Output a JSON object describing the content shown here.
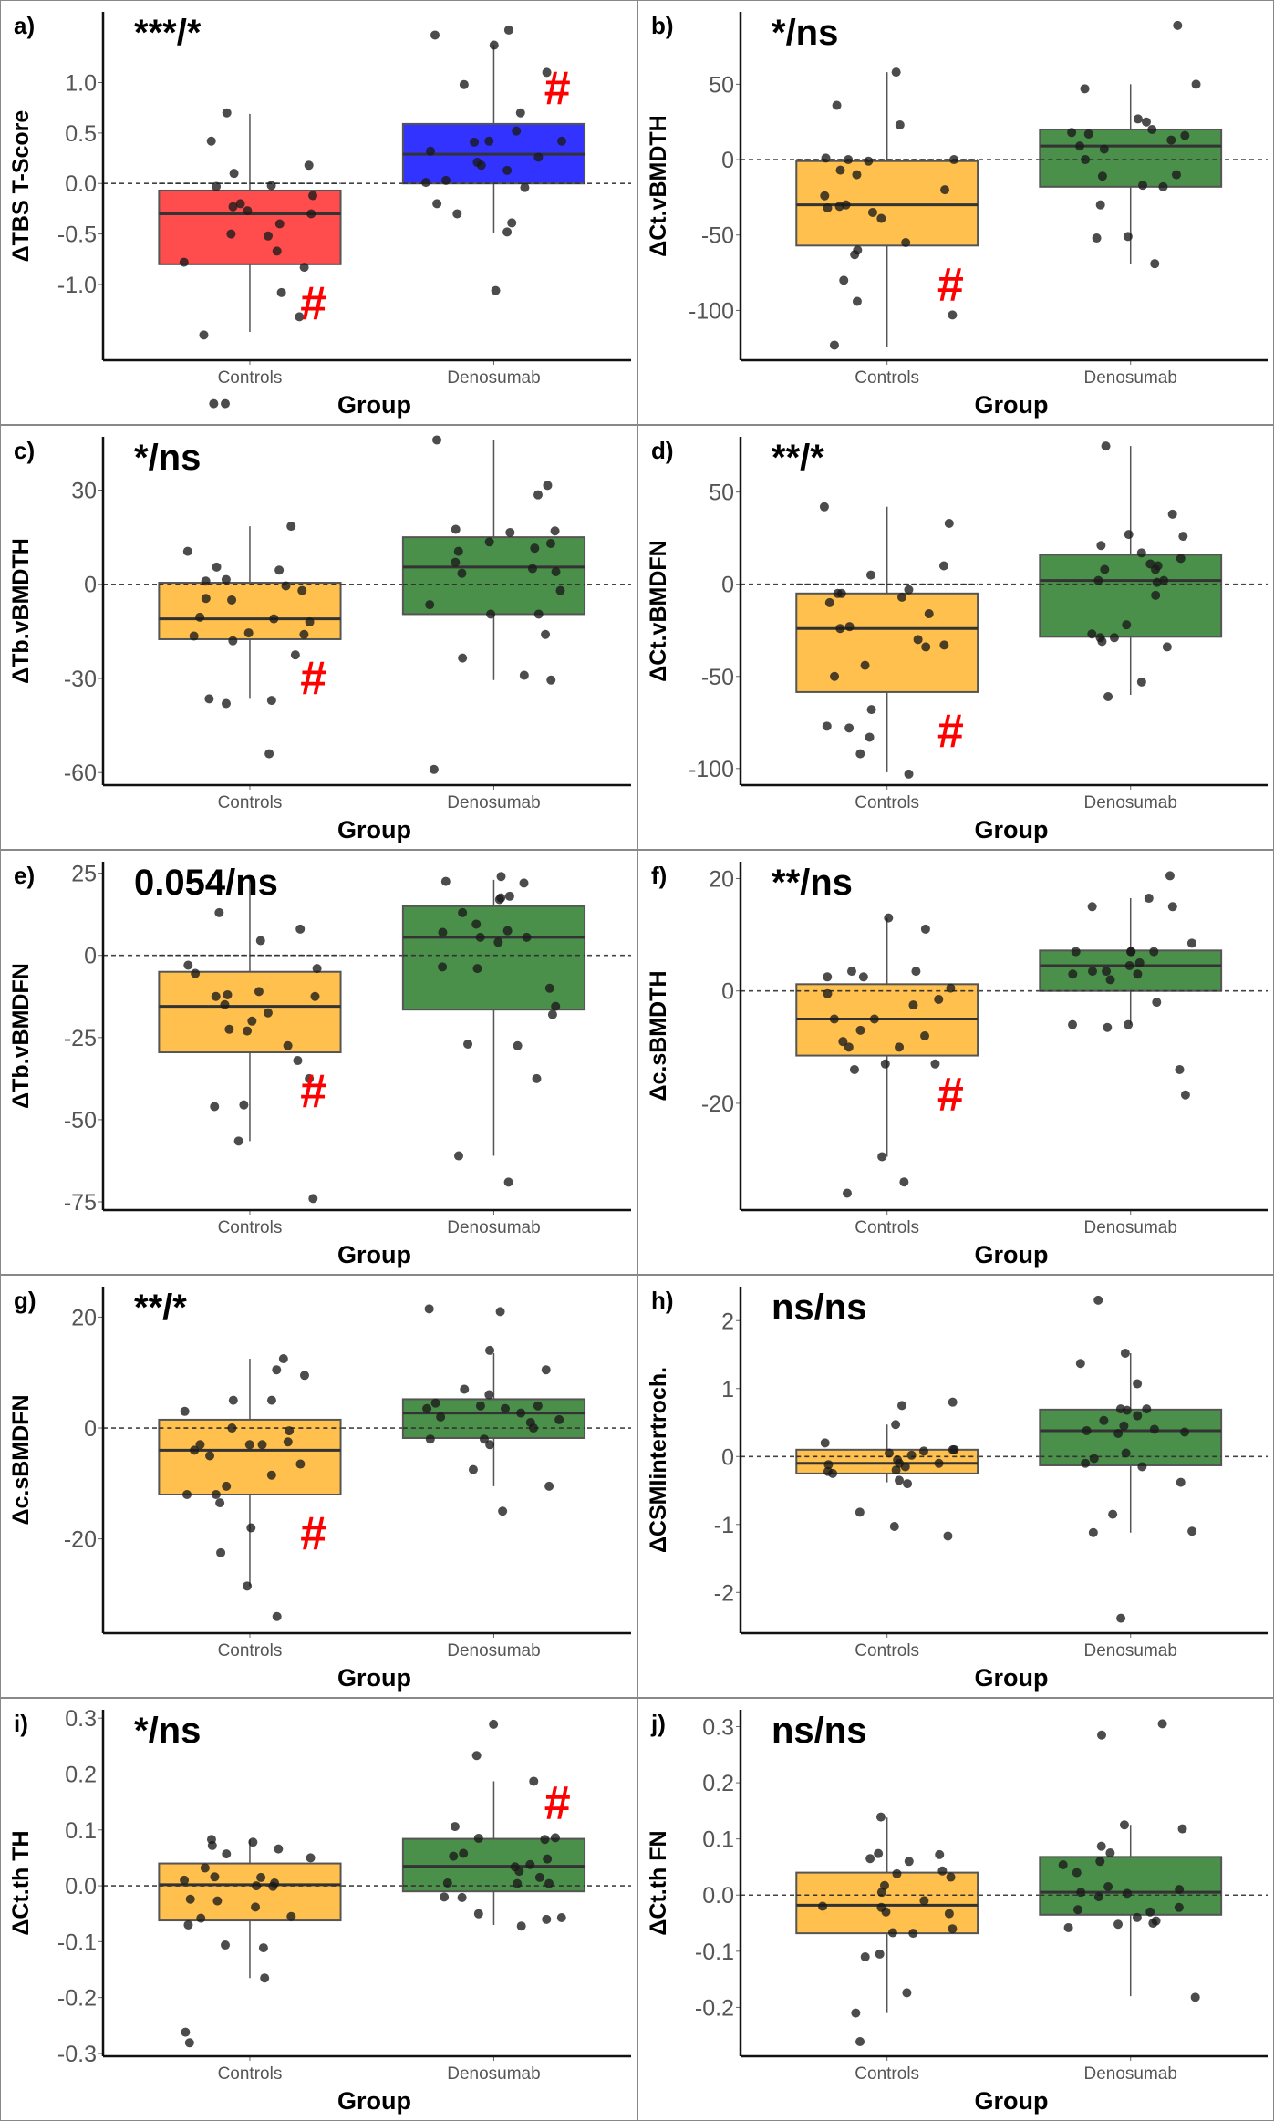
{
  "figure": {
    "x_axis_label": "Group",
    "categories": [
      "Controls",
      "Denosumab"
    ],
    "colors": {
      "controls_red": "#ff4d4d",
      "denosumab_blue": "#3333ff",
      "controls_orange": "#ffc04d",
      "denosumab_green": "#4a8f4a",
      "hash_red": "#ff0000",
      "point": "#1a1a1a"
    }
  },
  "chart_data": [
    {
      "type": "box",
      "panel": "a)",
      "annotation": "***/*",
      "ylabel": "ΔTBS T-Score",
      "yticks": [
        1.0,
        0.5,
        0.0,
        -0.5,
        -1.0
      ],
      "ytick_labels": [
        "1.0",
        "0.5",
        "0.0",
        "-0.5",
        "-1.0"
      ],
      "ylim": [
        -1.75,
        1.7
      ],
      "reference_line": 0,
      "box_colors": [
        "#ff4d4d",
        "#3333ff"
      ],
      "hash_marks": [
        "Controls",
        "Denosumab"
      ],
      "groups": [
        {
          "name": "Controls",
          "q1": -0.8,
          "median": -0.3,
          "q3": -0.07,
          "whisker_low": -1.47,
          "whisker_high": 0.69,
          "points": [
            0.7,
            0.42,
            0.18,
            0.1,
            -0.02,
            -0.03,
            -0.12,
            -0.2,
            -0.23,
            -0.27,
            -0.3,
            -0.4,
            -0.5,
            -0.52,
            -0.67,
            -0.78,
            -0.83,
            -1.08,
            -1.32,
            -1.5,
            -2.18,
            -2.18
          ]
        },
        {
          "name": "Denosumab",
          "q1": 0.0,
          "median": 0.29,
          "q3": 0.59,
          "whisker_low": -0.49,
          "whisker_high": 1.37,
          "points": [
            1.52,
            1.47,
            1.37,
            1.1,
            0.98,
            0.7,
            0.52,
            0.42,
            0.42,
            0.41,
            0.32,
            0.26,
            0.21,
            0.18,
            0.13,
            0.03,
            0.01,
            -0.04,
            -0.2,
            -0.3,
            -0.39,
            -0.48,
            -1.06
          ]
        }
      ]
    },
    {
      "type": "box",
      "panel": "b)",
      "annotation": "*/ns",
      "ylabel": "ΔCt.vBMDTH",
      "yticks": [
        50,
        0,
        -50,
        -100
      ],
      "ytick_labels": [
        "50",
        "0",
        "-50",
        "-100"
      ],
      "ylim": [
        -133,
        98
      ],
      "reference_line": 0,
      "box_colors": [
        "#ffc04d",
        "#4a8f4a"
      ],
      "hash_marks": [
        "Controls"
      ],
      "groups": [
        {
          "name": "Controls",
          "q1": -57,
          "median": -30,
          "q3": -1,
          "whisker_low": -124,
          "whisker_high": 58,
          "points": [
            58,
            36,
            23,
            1,
            0,
            0,
            -1,
            -7,
            -10,
            -20,
            -24,
            -30,
            -31,
            -32,
            -35,
            -39,
            -55,
            -60,
            -63,
            -80,
            -94,
            -103,
            -123
          ]
        },
        {
          "name": "Denosumab",
          "q1": -18,
          "median": 9,
          "q3": 20,
          "whisker_low": -69,
          "whisker_high": 50,
          "points": [
            89,
            50,
            47,
            27,
            25,
            20,
            18,
            17,
            16,
            13,
            9,
            7,
            0,
            -10,
            -11,
            -17,
            -18,
            -30,
            -51,
            -52,
            -69
          ]
        }
      ]
    },
    {
      "type": "box",
      "panel": "c)",
      "annotation": "*/ns",
      "ylabel": "ΔTb.vBMDTH",
      "yticks": [
        30,
        0,
        -30,
        -60
      ],
      "ytick_labels": [
        "30",
        "0",
        "-30",
        "-60"
      ],
      "ylim": [
        -64,
        47
      ],
      "reference_line": 0,
      "box_colors": [
        "#ffc04d",
        "#4a8f4a"
      ],
      "hash_marks": [
        "Controls"
      ],
      "groups": [
        {
          "name": "Controls",
          "q1": -17.5,
          "median": -11,
          "q3": 0.5,
          "whisker_low": -36.5,
          "whisker_high": 18.5,
          "points": [
            18.5,
            10.5,
            5.5,
            4.5,
            1.5,
            1.0,
            -0.5,
            -2,
            -4.5,
            -5,
            -10.5,
            -11,
            -12,
            -15.5,
            -16.5,
            -16,
            -18,
            -22.5,
            -37,
            -36.5,
            -38,
            -54
          ]
        },
        {
          "name": "Denosumab",
          "q1": -9.5,
          "median": 5.5,
          "q3": 15,
          "whisker_low": -30.5,
          "whisker_high": 46,
          "points": [
            46,
            31.5,
            28.5,
            17.5,
            17,
            16.5,
            13.5,
            13,
            11.5,
            10.5,
            7,
            5,
            4,
            3.5,
            -2,
            -6.5,
            -9.5,
            -9.5,
            -16,
            -23.5,
            -29,
            -30.5,
            -59
          ]
        }
      ]
    },
    {
      "type": "box",
      "panel": "d)",
      "annotation": "**/*",
      "ylabel": "ΔCt.vBMDFN",
      "yticks": [
        50,
        0,
        -50,
        -100
      ],
      "ytick_labels": [
        "50",
        "0",
        "-50",
        "-100"
      ],
      "ylim": [
        -109,
        80
      ],
      "reference_line": 0,
      "box_colors": [
        "#ffc04d",
        "#4a8f4a"
      ],
      "hash_marks": [
        "Controls"
      ],
      "groups": [
        {
          "name": "Controls",
          "q1": -58.5,
          "median": -24,
          "q3": -5,
          "whisker_low": -102,
          "whisker_high": 42,
          "points": [
            42,
            33,
            10,
            5,
            -3,
            -5,
            -5,
            -7,
            -10,
            -16,
            -23,
            -24,
            -30,
            -33,
            -34,
            -44,
            -50,
            -68,
            -77,
            -78,
            -83,
            -92,
            -103
          ]
        },
        {
          "name": "Denosumab",
          "q1": -28.5,
          "median": 2,
          "q3": 16,
          "whisker_low": -60,
          "whisker_high": 75,
          "points": [
            75,
            38,
            27,
            26,
            21,
            17,
            14,
            11,
            10,
            8,
            8,
            2,
            2,
            1,
            -6,
            -22,
            -27,
            -29,
            -29,
            -31,
            -34,
            -53,
            -61
          ]
        }
      ]
    },
    {
      "type": "box",
      "panel": "e)",
      "annotation": "0.054/ns",
      "ylabel": "ΔTb.vBMDFN",
      "yticks": [
        25,
        0,
        -25,
        -50,
        -75
      ],
      "ytick_labels": [
        "25",
        "0",
        "-25",
        "-50",
        "-75"
      ],
      "ylim": [
        -77.5,
        28.5
      ],
      "reference_line": 0,
      "box_colors": [
        "#ffc04d",
        "#4a8f4a"
      ],
      "hash_marks": [
        "Controls"
      ],
      "groups": [
        {
          "name": "Controls",
          "q1": -29.5,
          "median": -15.5,
          "q3": -5,
          "whisker_low": -56.5,
          "whisker_high": 23,
          "points": [
            13,
            8,
            4.5,
            -3,
            -4,
            -5.5,
            -11,
            -12,
            -12.5,
            -12.5,
            -15,
            -17.5,
            -20,
            -22.5,
            -23,
            -27.5,
            -32,
            -37.5,
            -45.5,
            -46,
            -56.5,
            -74
          ]
        },
        {
          "name": "Denosumab",
          "q1": -16.5,
          "median": 5.5,
          "q3": 15,
          "whisker_low": -61,
          "whisker_high": 23,
          "points": [
            24,
            22,
            22.5,
            17.5,
            18,
            17,
            13,
            9.5,
            7.5,
            7,
            5.5,
            5.5,
            4,
            -3.5,
            -4,
            -10,
            -15.5,
            -18,
            -27.5,
            -27,
            -37.5,
            -61,
            -69
          ]
        }
      ]
    },
    {
      "type": "box",
      "panel": "f)",
      "annotation": "**/ns",
      "ylabel": "Δc.sBMDTH",
      "yticks": [
        20,
        0,
        -20
      ],
      "ytick_labels": [
        "20",
        "0",
        "-20"
      ],
      "ylim": [
        -39,
        23
      ],
      "reference_line": 0,
      "box_colors": [
        "#ffc04d",
        "#4a8f4a"
      ],
      "hash_marks": [
        "Controls"
      ],
      "groups": [
        {
          "name": "Controls",
          "q1": -11.5,
          "median": -5,
          "q3": 1.2,
          "whisker_low": -29.5,
          "whisker_high": 13,
          "points": [
            13,
            11,
            3.5,
            3.5,
            2.5,
            2.5,
            0.5,
            -0.5,
            -1.5,
            -2.5,
            -5,
            -5,
            -7,
            -8,
            -9,
            -10,
            -10,
            -13,
            -13,
            -14,
            -29.5,
            -34,
            -36
          ]
        },
        {
          "name": "Denosumab",
          "q1": 0,
          "median": 4.5,
          "q3": 7.2,
          "whisker_low": -6,
          "whisker_high": 16.5,
          "points": [
            20.5,
            16.5,
            15,
            15,
            8.5,
            7,
            7,
            7,
            7,
            5,
            4.5,
            3.5,
            3.5,
            3,
            3,
            2,
            -2,
            -6,
            -6,
            -6.5,
            -14,
            -18.5
          ]
        }
      ]
    },
    {
      "type": "box",
      "panel": "g)",
      "annotation": "**/*",
      "ylabel": "Δc.sBMDFN",
      "yticks": [
        20,
        0,
        -20
      ],
      "ytick_labels": [
        "20",
        "0",
        "-20"
      ],
      "ylim": [
        -37,
        25.5
      ],
      "reference_line": 0,
      "box_colors": [
        "#ffc04d",
        "#4a8f4a"
      ],
      "hash_marks": [
        "Controls"
      ],
      "groups": [
        {
          "name": "Controls",
          "q1": -12,
          "median": -4,
          "q3": 1.5,
          "whisker_low": -28.5,
          "whisker_high": 12.5,
          "points": [
            12.5,
            10.5,
            9.5,
            5,
            5,
            3,
            0,
            -0.5,
            -2.5,
            -3,
            -3,
            -3,
            -4,
            -5,
            -6.5,
            -8.5,
            -10.5,
            -12,
            -12,
            -13.5,
            -18,
            -22.5,
            -28.5,
            -34
          ]
        },
        {
          "name": "Denosumab",
          "q1": -1.8,
          "median": 2.7,
          "q3": 5.2,
          "whisker_low": -10.5,
          "whisker_high": 13.5,
          "points": [
            21.5,
            21,
            14,
            10.5,
            7,
            6,
            4.5,
            4,
            4,
            3.5,
            3.5,
            2.7,
            2,
            1.5,
            1,
            0,
            -2,
            -2,
            -3,
            -7.5,
            -10.5,
            -15
          ]
        }
      ]
    },
    {
      "type": "box",
      "panel": "h)",
      "annotation": "ns/ns",
      "ylabel": "ΔCSMIintertroch.",
      "yticks": [
        2,
        1,
        0,
        -1,
        -2
      ],
      "ytick_labels": [
        "2",
        "1",
        "0",
        "-1",
        "-2"
      ],
      "ylim": [
        -2.6,
        2.5
      ],
      "reference_line": 0,
      "box_colors": [
        "#ffc04d",
        "#4a8f4a"
      ],
      "hash_marks": [],
      "groups": [
        {
          "name": "Controls",
          "q1": -0.25,
          "median": -0.1,
          "q3": 0.1,
          "whisker_low": -0.38,
          "whisker_high": 0.47,
          "points": [
            0.8,
            0.75,
            0.47,
            0.2,
            0.1,
            0.1,
            0.08,
            0.05,
            0.02,
            -0.05,
            -0.1,
            -0.12,
            -0.1,
            -0.15,
            -0.2,
            -0.25,
            -0.22,
            -0.35,
            -0.4,
            -0.82,
            -1.03,
            -1.17
          ]
        },
        {
          "name": "Denosumab",
          "q1": -0.13,
          "median": 0.38,
          "q3": 0.69,
          "whisker_low": -1.12,
          "whisker_high": 1.52,
          "points": [
            2.3,
            1.52,
            1.37,
            1.07,
            0.7,
            0.7,
            0.68,
            0.6,
            0.53,
            0.45,
            0.4,
            0.38,
            0.36,
            0.34,
            0.05,
            -0.03,
            -0.1,
            -0.15,
            -0.38,
            -0.85,
            -1.1,
            -1.12,
            -2.38
          ]
        }
      ]
    },
    {
      "type": "box",
      "panel": "i)",
      "annotation": "*/ns",
      "ylabel": "ΔCt.th TH",
      "yticks": [
        0.3,
        0.2,
        0.1,
        0.0,
        -0.1,
        -0.2,
        -0.3
      ],
      "ytick_labels": [
        "0.3",
        "0.2",
        "0.1",
        "0.0",
        "-0.1",
        "-0.2",
        "-0.3"
      ],
      "ylim": [
        -0.305,
        0.315
      ],
      "reference_line": 0,
      "box_colors": [
        "#ffc04d",
        "#4a8f4a"
      ],
      "hash_marks": [
        "Denosumab"
      ],
      "groups": [
        {
          "name": "Controls",
          "q1": -0.062,
          "median": 0.002,
          "q3": 0.04,
          "whisker_low": -0.165,
          "whisker_high": 0.083,
          "points": [
            0.083,
            0.078,
            0.072,
            0.066,
            0.057,
            0.05,
            0.032,
            0.016,
            0.015,
            0.01,
            0.005,
            0.0,
            -0.001,
            -0.024,
            -0.027,
            -0.038,
            -0.055,
            -0.058,
            -0.07,
            -0.106,
            -0.111,
            -0.165,
            -0.262,
            -0.281
          ]
        },
        {
          "name": "Denosumab",
          "q1": -0.01,
          "median": 0.035,
          "q3": 0.084,
          "whisker_low": -0.07,
          "whisker_high": 0.187,
          "points": [
            0.289,
            0.233,
            0.187,
            0.106,
            0.086,
            0.085,
            0.083,
            0.058,
            0.053,
            0.048,
            0.038,
            0.034,
            0.026,
            0.015,
            0.005,
            0.004,
            0.004,
            -0.02,
            -0.021,
            -0.05,
            -0.057,
            -0.06,
            -0.072
          ]
        }
      ]
    },
    {
      "type": "box",
      "panel": "j)",
      "annotation": "ns/ns",
      "ylabel": "ΔCt.th FN",
      "yticks": [
        0.3,
        0.2,
        0.1,
        0.0,
        -0.1,
        -0.2
      ],
      "ytick_labels": [
        "0.3",
        "0.2",
        "0.1",
        "0.0",
        "-0.1",
        "-0.2"
      ],
      "ylim": [
        -0.287,
        0.33
      ],
      "reference_line": 0,
      "box_colors": [
        "#ffc04d",
        "#4a8f4a"
      ],
      "hash_marks": [],
      "groups": [
        {
          "name": "Controls",
          "q1": -0.068,
          "median": -0.018,
          "q3": 0.04,
          "whisker_low": -0.21,
          "whisker_high": 0.138,
          "points": [
            0.139,
            0.074,
            0.072,
            0.065,
            0.06,
            0.043,
            0.038,
            0.032,
            0.017,
            0.005,
            -0.01,
            -0.02,
            -0.022,
            -0.03,
            -0.033,
            -0.06,
            -0.067,
            -0.068,
            -0.105,
            -0.11,
            -0.174,
            -0.21,
            -0.261
          ]
        },
        {
          "name": "Denosumab",
          "q1": -0.035,
          "median": 0.005,
          "q3": 0.068,
          "whisker_low": -0.18,
          "whisker_high": 0.125,
          "points": [
            0.305,
            0.285,
            0.125,
            0.118,
            0.087,
            0.075,
            0.06,
            0.054,
            0.04,
            0.015,
            0.01,
            0.005,
            0.003,
            -0.003,
            -0.022,
            -0.026,
            -0.03,
            -0.046,
            -0.05,
            -0.052,
            -0.058,
            -0.04,
            -0.182
          ]
        }
      ]
    }
  ]
}
